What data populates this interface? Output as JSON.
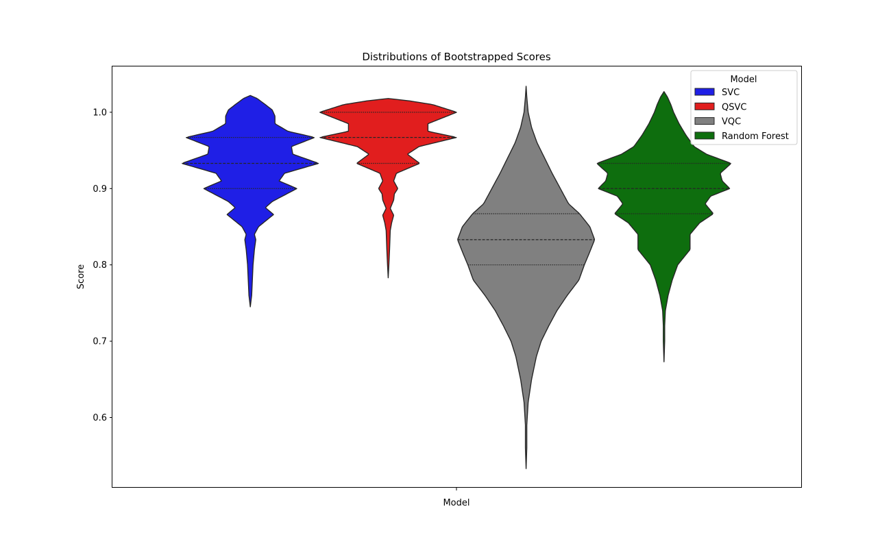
{
  "chart_data": {
    "type": "violin",
    "title": "Distributions of Bootstrapped Scores",
    "xlabel": "Model",
    "ylabel": "Score",
    "ylim": [
      0.508,
      1.06
    ],
    "yticks": [
      "0.6",
      "0.7",
      "0.8",
      "0.9",
      "1.0"
    ],
    "grid": false,
    "legend": {
      "title": "Model",
      "placement": "top-right"
    },
    "series": [
      {
        "name": "SVC",
        "color": "#1f1fe6",
        "min": 0.745,
        "max": 1.022,
        "quartiles": [
          0.9,
          0.933,
          0.967
        ],
        "density_profile": [
          [
            0.745,
            0.0
          ],
          [
            0.76,
            0.02
          ],
          [
            0.78,
            0.03
          ],
          [
            0.8,
            0.04
          ],
          [
            0.82,
            0.06
          ],
          [
            0.833,
            0.08
          ],
          [
            0.84,
            0.06
          ],
          [
            0.85,
            0.12
          ],
          [
            0.866,
            0.34
          ],
          [
            0.875,
            0.22
          ],
          [
            0.883,
            0.32
          ],
          [
            0.9,
            0.68
          ],
          [
            0.91,
            0.42
          ],
          [
            0.92,
            0.5
          ],
          [
            0.933,
            1.0
          ],
          [
            0.945,
            0.62
          ],
          [
            0.955,
            0.6
          ],
          [
            0.967,
            0.94
          ],
          [
            0.975,
            0.55
          ],
          [
            0.985,
            0.36
          ],
          [
            0.995,
            0.36
          ],
          [
            1.003,
            0.32
          ],
          [
            1.01,
            0.22
          ],
          [
            1.018,
            0.1
          ],
          [
            1.022,
            0.0
          ]
        ]
      },
      {
        "name": "QSVC",
        "color": "#e11e1e",
        "min": 0.783,
        "max": 1.018,
        "quartiles": [
          0.933,
          0.967,
          1.0
        ],
        "density_profile": [
          [
            0.783,
            0.0
          ],
          [
            0.8,
            0.01
          ],
          [
            0.82,
            0.02
          ],
          [
            0.845,
            0.03
          ],
          [
            0.855,
            0.05
          ],
          [
            0.865,
            0.08
          ],
          [
            0.874,
            0.03
          ],
          [
            0.885,
            0.08
          ],
          [
            0.893,
            0.09
          ],
          [
            0.9,
            0.14
          ],
          [
            0.91,
            0.08
          ],
          [
            0.92,
            0.12
          ],
          [
            0.933,
            0.46
          ],
          [
            0.945,
            0.28
          ],
          [
            0.955,
            0.45
          ],
          [
            0.967,
            1.0
          ],
          [
            0.975,
            0.58
          ],
          [
            0.985,
            0.58
          ],
          [
            1.0,
            1.0
          ],
          [
            1.01,
            0.65
          ],
          [
            1.015,
            0.3
          ],
          [
            1.018,
            0.0
          ]
        ]
      },
      {
        "name": "VQC",
        "color": "#808080",
        "min": 0.533,
        "max": 1.034,
        "quartiles": [
          0.8,
          0.833,
          0.867
        ],
        "density_profile": [
          [
            0.533,
            0.0
          ],
          [
            0.56,
            0.01
          ],
          [
            0.59,
            0.01
          ],
          [
            0.62,
            0.03
          ],
          [
            0.65,
            0.08
          ],
          [
            0.68,
            0.15
          ],
          [
            0.7,
            0.22
          ],
          [
            0.72,
            0.33
          ],
          [
            0.74,
            0.45
          ],
          [
            0.76,
            0.6
          ],
          [
            0.78,
            0.77
          ],
          [
            0.8,
            0.85
          ],
          [
            0.815,
            0.92
          ],
          [
            0.833,
            1.0
          ],
          [
            0.85,
            0.93
          ],
          [
            0.867,
            0.78
          ],
          [
            0.88,
            0.62
          ],
          [
            0.9,
            0.5
          ],
          [
            0.92,
            0.38
          ],
          [
            0.94,
            0.27
          ],
          [
            0.96,
            0.16
          ],
          [
            0.98,
            0.08
          ],
          [
            1.0,
            0.03
          ],
          [
            1.02,
            0.01
          ],
          [
            1.034,
            0.0
          ]
        ]
      },
      {
        "name": "Random Forest",
        "color": "#0e6e0e",
        "min": 0.673,
        "max": 1.027,
        "quartiles": [
          0.867,
          0.9,
          0.933
        ],
        "density_profile": [
          [
            0.673,
            0.0
          ],
          [
            0.7,
            0.01
          ],
          [
            0.72,
            0.01
          ],
          [
            0.74,
            0.02
          ],
          [
            0.76,
            0.06
          ],
          [
            0.78,
            0.12
          ],
          [
            0.8,
            0.2
          ],
          [
            0.82,
            0.38
          ],
          [
            0.84,
            0.38
          ],
          [
            0.855,
            0.52
          ],
          [
            0.867,
            0.72
          ],
          [
            0.88,
            0.6
          ],
          [
            0.89,
            0.68
          ],
          [
            0.9,
            0.96
          ],
          [
            0.91,
            0.85
          ],
          [
            0.92,
            0.82
          ],
          [
            0.933,
            0.98
          ],
          [
            0.945,
            0.62
          ],
          [
            0.955,
            0.44
          ],
          [
            0.97,
            0.32
          ],
          [
            0.985,
            0.22
          ],
          [
            1.0,
            0.14
          ],
          [
            1.01,
            0.1
          ],
          [
            1.02,
            0.05
          ],
          [
            1.027,
            0.0
          ]
        ]
      }
    ]
  }
}
